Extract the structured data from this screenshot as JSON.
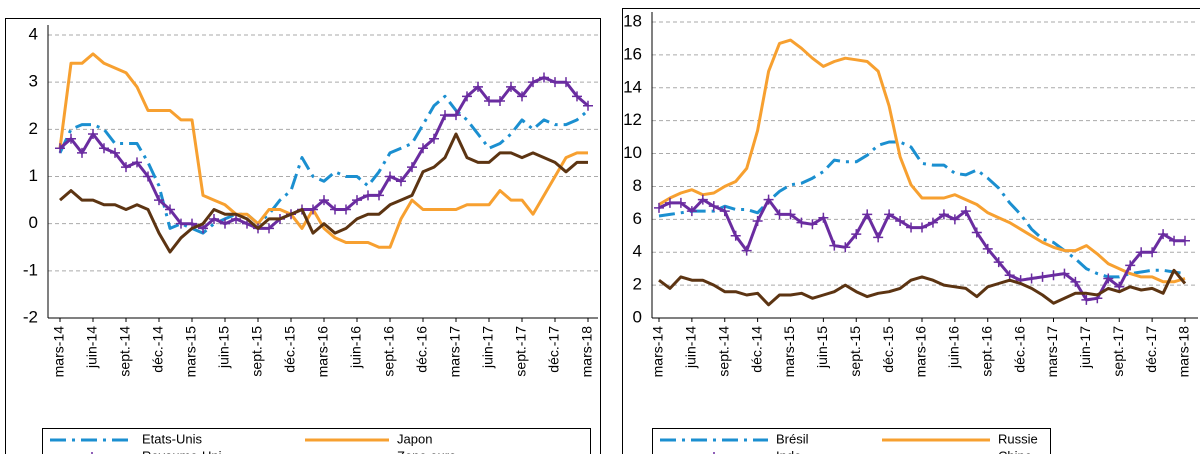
{
  "chart_data": [
    {
      "type": "line",
      "categories": [
        "mars-14",
        null,
        null,
        "juin-14",
        null,
        null,
        "sept.-14",
        null,
        null,
        "déc.-14",
        null,
        null,
        "mars-15",
        null,
        null,
        "juin-15",
        null,
        null,
        "sept.-15",
        null,
        null,
        "déc.-15",
        null,
        null,
        "mars-16",
        null,
        null,
        "juin-16",
        null,
        null,
        "sept.-16",
        null,
        null,
        "déc.-16",
        null,
        null,
        "mars-17",
        null,
        null,
        "juin-17",
        null,
        null,
        "sept.-17",
        null,
        null,
        "déc.-17",
        null,
        null,
        "mars-18"
      ],
      "ylim": [
        -2,
        4
      ],
      "yticks": [
        -2,
        -1,
        0,
        1,
        2,
        3,
        4
      ],
      "grid": true,
      "legend": "bottom",
      "series": [
        {
          "name": "Etats-Unis",
          "color": "#1b8fd0",
          "dash": "dash-dot",
          "values": [
            1.5,
            2.0,
            2.1,
            2.1,
            2.0,
            1.7,
            1.7,
            1.7,
            1.3,
            0.8,
            -0.1,
            0.0,
            -0.1,
            -0.2,
            0.0,
            0.1,
            0.2,
            0.2,
            0.0,
            0.2,
            0.5,
            0.7,
            1.4,
            1.0,
            0.9,
            1.1,
            1.0,
            1.0,
            0.8,
            1.1,
            1.5,
            1.6,
            1.7,
            2.1,
            2.5,
            2.7,
            2.4,
            2.2,
            1.9,
            1.6,
            1.7,
            1.9,
            2.2,
            2.0,
            2.2,
            2.1,
            2.1,
            2.2,
            2.4
          ]
        },
        {
          "name": "Japon",
          "color": "#f7a030",
          "values": [
            1.6,
            3.4,
            3.4,
            3.6,
            3.4,
            3.3,
            3.2,
            2.9,
            2.4,
            2.4,
            2.4,
            2.2,
            2.2,
            0.6,
            0.5,
            0.4,
            0.2,
            0.2,
            0.0,
            0.3,
            0.3,
            0.2,
            -0.1,
            0.3,
            -0.1,
            -0.3,
            -0.4,
            -0.4,
            -0.4,
            -0.5,
            -0.5,
            0.1,
            0.5,
            0.3,
            0.3,
            0.3,
            0.3,
            0.4,
            0.4,
            0.4,
            0.7,
            0.5,
            0.5,
            0.2,
            0.6,
            1.0,
            1.4,
            1.5,
            1.5
          ]
        },
        {
          "name": "Royaume-Uni",
          "color": "#6a2ca0",
          "marker": "plus",
          "values": [
            1.6,
            1.8,
            1.5,
            1.9,
            1.6,
            1.5,
            1.2,
            1.3,
            1.0,
            0.5,
            0.3,
            0.0,
            0.0,
            -0.1,
            0.1,
            0.0,
            0.1,
            0.0,
            -0.1,
            -0.1,
            0.1,
            0.2,
            0.3,
            0.3,
            0.5,
            0.3,
            0.3,
            0.5,
            0.6,
            0.6,
            1.0,
            0.9,
            1.2,
            1.6,
            1.8,
            2.3,
            2.3,
            2.7,
            2.9,
            2.6,
            2.6,
            2.9,
            2.7,
            3.0,
            3.1,
            3.0,
            3.0,
            2.7,
            2.5
          ]
        },
        {
          "name": "Zone euro",
          "color": "#5c3412",
          "values": [
            0.5,
            0.7,
            0.5,
            0.5,
            0.4,
            0.4,
            0.3,
            0.4,
            0.3,
            -0.2,
            -0.6,
            -0.3,
            -0.1,
            0.0,
            0.3,
            0.2,
            0.2,
            0.1,
            -0.1,
            0.1,
            0.1,
            0.2,
            0.3,
            -0.2,
            0.0,
            -0.2,
            -0.1,
            0.1,
            0.2,
            0.2,
            0.4,
            0.5,
            0.6,
            1.1,
            1.2,
            1.4,
            1.9,
            1.4,
            1.3,
            1.3,
            1.5,
            1.5,
            1.4,
            1.5,
            1.4,
            1.3,
            1.1,
            1.3,
            1.3
          ]
        }
      ]
    },
    {
      "type": "line",
      "categories": [
        "mars-14",
        null,
        null,
        "juin-14",
        null,
        null,
        "sept.-14",
        null,
        null,
        "déc.-14",
        null,
        null,
        "mars-15",
        null,
        null,
        "juin-15",
        null,
        null,
        "sept.-15",
        null,
        null,
        "déc.-15",
        null,
        null,
        "mars-16",
        null,
        null,
        "juin-16",
        null,
        null,
        "sept.-16",
        null,
        null,
        "déc.-16",
        null,
        null,
        "mars-17",
        null,
        null,
        "juin-17",
        null,
        null,
        "sept.-17",
        null,
        null,
        "déc.-17",
        null,
        null,
        "mars-18"
      ],
      "ylim": [
        0,
        18
      ],
      "yticks": [
        0,
        2,
        4,
        6,
        8,
        10,
        12,
        14,
        16,
        18
      ],
      "grid": true,
      "legend": "bottom",
      "series": [
        {
          "name": "Brésil",
          "color": "#1b8fd0",
          "dash": "dash-dot",
          "values": [
            6.2,
            6.3,
            6.4,
            6.5,
            6.5,
            6.5,
            6.8,
            6.6,
            6.6,
            6.4,
            7.1,
            7.7,
            8.1,
            8.2,
            8.5,
            8.9,
            9.6,
            9.5,
            9.5,
            9.9,
            10.5,
            10.7,
            10.7,
            10.4,
            9.4,
            9.3,
            9.3,
            8.8,
            8.7,
            9.0,
            8.5,
            7.9,
            7.0,
            6.3,
            5.4,
            4.8,
            4.6,
            4.1,
            3.6,
            3.0,
            2.7,
            2.5,
            2.5,
            2.7,
            2.8,
            2.9,
            2.9,
            2.8,
            2.7
          ]
        },
        {
          "name": "Russie",
          "color": "#f7a030",
          "values": [
            6.9,
            7.3,
            7.6,
            7.8,
            7.5,
            7.6,
            8.0,
            8.3,
            9.1,
            11.4,
            15.0,
            16.7,
            16.9,
            16.4,
            15.8,
            15.3,
            15.6,
            15.8,
            15.7,
            15.6,
            15.0,
            12.9,
            9.8,
            8.1,
            7.3,
            7.3,
            7.3,
            7.5,
            7.2,
            6.9,
            6.4,
            6.1,
            5.8,
            5.4,
            5.0,
            4.6,
            4.3,
            4.1,
            4.1,
            4.4,
            3.9,
            3.3,
            3.0,
            2.7,
            2.5,
            2.5,
            2.2,
            2.2,
            2.4
          ]
        },
        {
          "name": "Inde",
          "color": "#6a2ca0",
          "marker": "plus",
          "values": [
            6.7,
            7.0,
            7.0,
            6.5,
            7.2,
            6.8,
            6.5,
            5.0,
            4.1,
            5.9,
            7.2,
            6.3,
            6.3,
            5.8,
            5.7,
            6.1,
            4.4,
            4.3,
            5.1,
            6.3,
            4.9,
            6.3,
            5.9,
            5.5,
            5.5,
            5.8,
            6.3,
            6.0,
            6.5,
            5.2,
            4.2,
            3.4,
            2.6,
            2.3,
            2.4,
            2.5,
            2.6,
            2.7,
            2.2,
            1.1,
            1.2,
            2.4,
            1.9,
            3.2,
            4.0,
            4.0,
            5.1,
            4.7,
            4.7
          ]
        },
        {
          "name": "Chine",
          "color": "#5c3412",
          "values": [
            2.3,
            1.8,
            2.5,
            2.3,
            2.3,
            2.0,
            1.6,
            1.6,
            1.4,
            1.5,
            0.8,
            1.4,
            1.4,
            1.5,
            1.2,
            1.4,
            1.6,
            2.0,
            1.6,
            1.3,
            1.5,
            1.6,
            1.8,
            2.3,
            2.5,
            2.3,
            2.0,
            1.9,
            1.8,
            1.3,
            1.9,
            2.1,
            2.3,
            2.1,
            1.8,
            1.4,
            0.9,
            1.2,
            1.5,
            1.5,
            1.4,
            1.8,
            1.6,
            1.9,
            1.7,
            1.8,
            1.5,
            2.9,
            2.1
          ]
        }
      ]
    }
  ]
}
